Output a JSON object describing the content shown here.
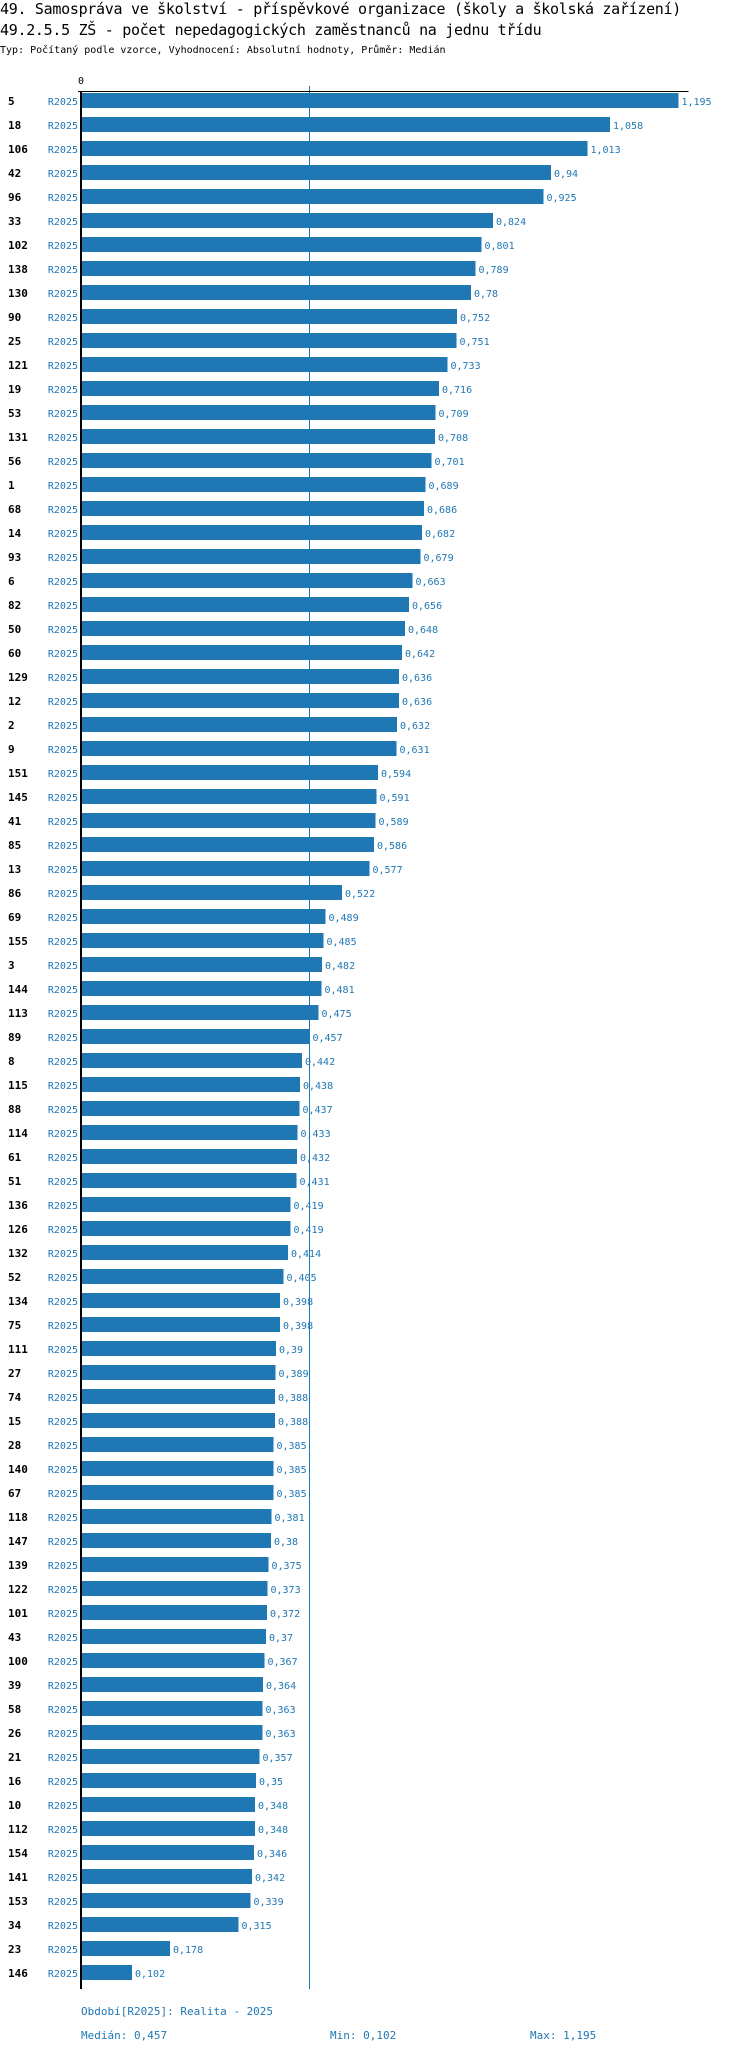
{
  "header": {
    "title": "49. Samospráva ve školství - příspěvkové organizace (školy a školská zařízení)",
    "subtitle": "49.2.5.5 ZŠ - počet nepedagogických zaměstnanců na jednu třídu",
    "info": "Typ: Počítaný podle vzorce, Vyhodnocení: Absolutní hodnoty, Průměr: Medián"
  },
  "colors": {
    "bar": "#1f77b4",
    "axis": "#000000",
    "median_line": "#1f77b4",
    "label": "#1f77b4"
  },
  "chart_data": {
    "type": "bar",
    "orientation": "horizontal",
    "x_tick_label": "0",
    "xlim": [
      0,
      1.195
    ],
    "series_label": "R2025",
    "median": 0.457,
    "categories": [
      "5",
      "18",
      "106",
      "42",
      "96",
      "33",
      "102",
      "138",
      "130",
      "90",
      "25",
      "121",
      "19",
      "53",
      "131",
      "56",
      "1",
      "68",
      "14",
      "93",
      "6",
      "82",
      "50",
      "60",
      "129",
      "12",
      "2",
      "9",
      "151",
      "145",
      "41",
      "85",
      "13",
      "86",
      "69",
      "155",
      "3",
      "144",
      "113",
      "89",
      "8",
      "115",
      "88",
      "114",
      "61",
      "51",
      "136",
      "126",
      "132",
      "52",
      "134",
      "75",
      "111",
      "27",
      "74",
      "15",
      "28",
      "140",
      "67",
      "118",
      "147",
      "139",
      "122",
      "101",
      "43",
      "100",
      "39",
      "58",
      "26",
      "21",
      "16",
      "10",
      "112",
      "154",
      "141",
      "153",
      "34",
      "23",
      "146"
    ],
    "values": [
      1.195,
      1.058,
      1.013,
      0.94,
      0.925,
      0.824,
      0.801,
      0.789,
      0.78,
      0.752,
      0.751,
      0.733,
      0.716,
      0.709,
      0.708,
      0.701,
      0.689,
      0.686,
      0.682,
      0.679,
      0.663,
      0.656,
      0.648,
      0.642,
      0.636,
      0.636,
      0.632,
      0.631,
      0.594,
      0.591,
      0.589,
      0.586,
      0.577,
      0.522,
      0.489,
      0.485,
      0.482,
      0.481,
      0.475,
      0.457,
      0.442,
      0.438,
      0.437,
      0.433,
      0.432,
      0.431,
      0.419,
      0.419,
      0.414,
      0.405,
      0.398,
      0.398,
      0.39,
      0.389,
      0.388,
      0.388,
      0.385,
      0.385,
      0.385,
      0.381,
      0.38,
      0.375,
      0.373,
      0.372,
      0.37,
      0.367,
      0.364,
      0.363,
      0.363,
      0.357,
      0.35,
      0.348,
      0.348,
      0.346,
      0.342,
      0.339,
      0.315,
      0.178,
      0.102
    ],
    "value_labels": [
      "1,195",
      "1,058",
      "1,013",
      "0,94",
      "0,925",
      "0,824",
      "0,801",
      "0,789",
      "0,78",
      "0,752",
      "0,751",
      "0,733",
      "0,716",
      "0,709",
      "0,708",
      "0,701",
      "0,689",
      "0,686",
      "0,682",
      "0,679",
      "0,663",
      "0,656",
      "0,648",
      "0,642",
      "0,636",
      "0,636",
      "0,632",
      "0,631",
      "0,594",
      "0,591",
      "0,589",
      "0,586",
      "0,577",
      "0,522",
      "0,489",
      "0,485",
      "0,482",
      "0,481",
      "0,475",
      "0,457",
      "0,442",
      "0,438",
      "0,437",
      "0,433",
      "0,432",
      "0,431",
      "0,419",
      "0,419",
      "0,414",
      "0,405",
      "0,398",
      "0,398",
      "0,39",
      "0,389",
      "0,388",
      "0,388",
      "0,385",
      "0,385",
      "0,385",
      "0,381",
      "0,38",
      "0,375",
      "0,373",
      "0,372",
      "0,37",
      "0,367",
      "0,364",
      "0,363",
      "0,363",
      "0,357",
      "0,35",
      "0,348",
      "0,348",
      "0,346",
      "0,342",
      "0,339",
      "0,315",
      "0,178",
      "0,102"
    ]
  },
  "footer": {
    "period": "Období[R2025]: Realita - 2025",
    "median": "Medián: 0,457",
    "min": "Min: 0,102",
    "max": "Max: 1,195"
  }
}
